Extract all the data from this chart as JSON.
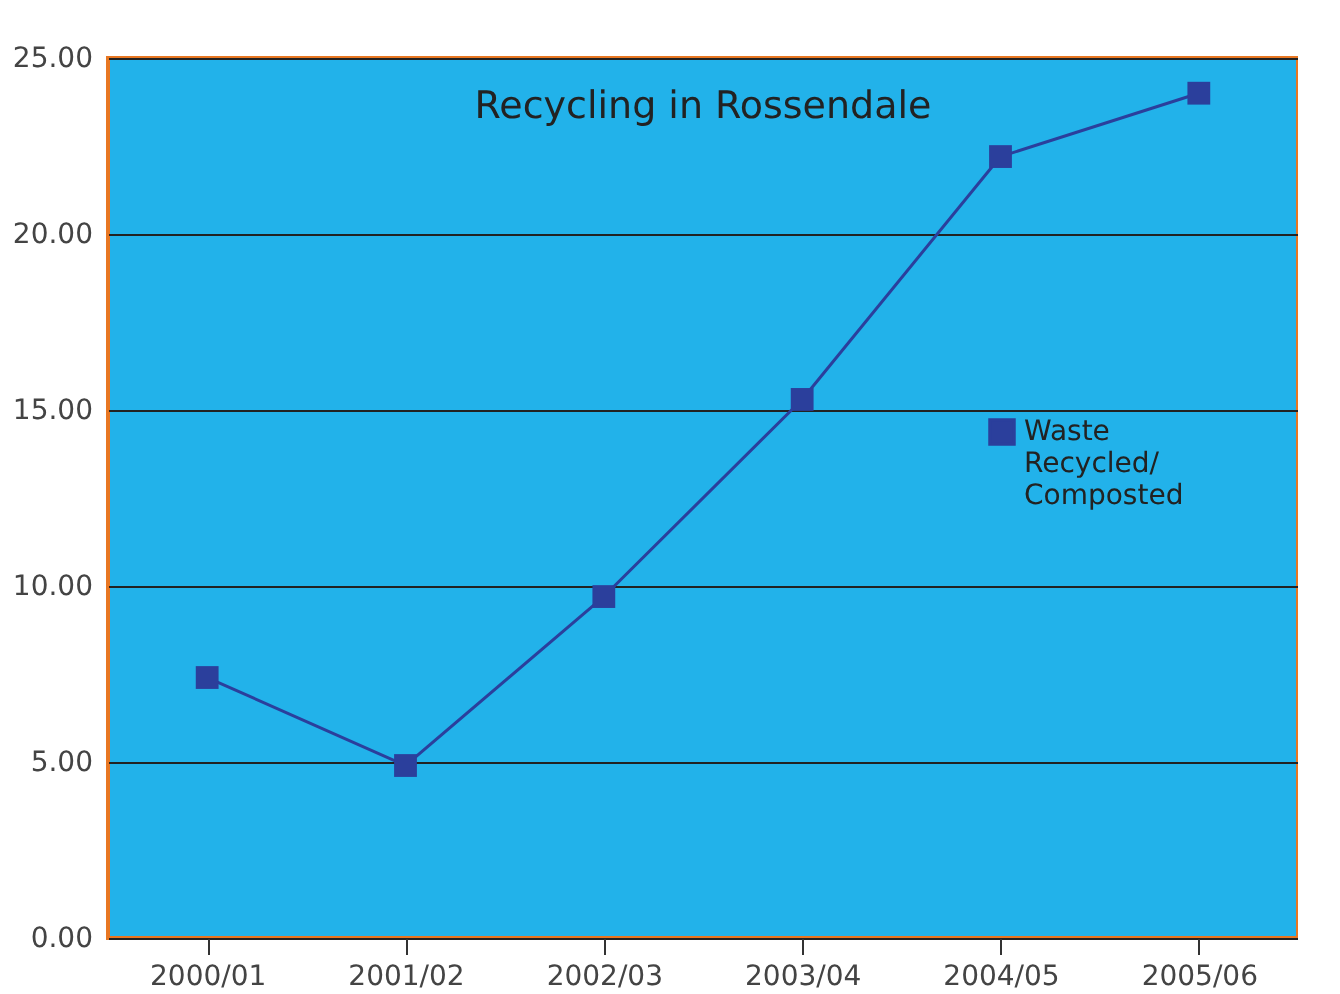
{
  "chart_data": {
    "type": "line",
    "title": "Recycling in Rossendale",
    "categories": [
      "2000/01",
      "2001/02",
      "2002/03",
      "2003/04",
      "2004/05",
      "2005/06"
    ],
    "series": [
      {
        "name": "Waste Recycled/ Composted",
        "color": "#2b3f9c",
        "values": [
          7.4,
          4.9,
          9.7,
          15.3,
          22.2,
          24.0
        ]
      }
    ],
    "ylim": [
      0,
      25
    ],
    "yticks": [
      {
        "value": 0,
        "label": "0.00"
      },
      {
        "value": 5,
        "label": "5.00"
      },
      {
        "value": 10,
        "label": "10.00"
      },
      {
        "value": 15,
        "label": "15.00"
      },
      {
        "value": 20,
        "label": "20.00"
      },
      {
        "value": 25,
        "label": "25.00"
      }
    ],
    "grid": "y",
    "legend": "right",
    "marker": "square",
    "line_style": "solid"
  }
}
